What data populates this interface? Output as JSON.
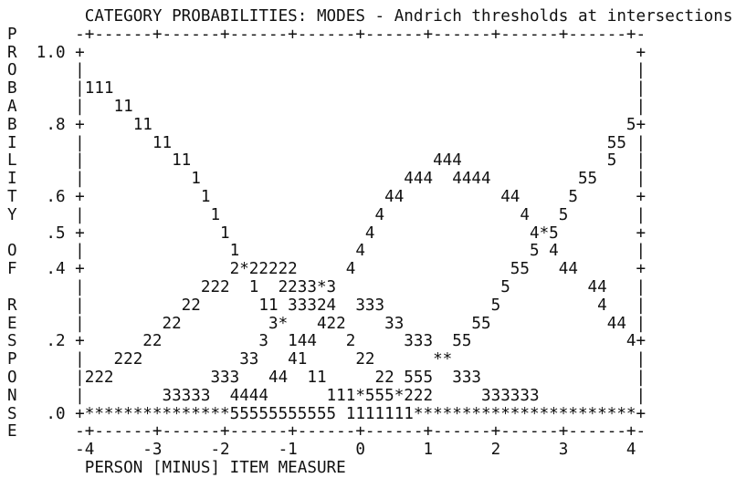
{
  "lines": [
    "        CATEGORY PROBABILITIES: MODES - Andrich thresholds at intersections",
    "P      -+------+------+------+------+------+------+------+------+-",
    "R  1.0 +                                                         +",
    "O      |                                                         |",
    "B      |111                                                      |",
    "A      |   11                                                    |",
    "B   .8 +     11                                                 5+",
    "I      |       11                                             55 |",
    "L      |         11                         444               5  |",
    "I      |           1                     444  4444         55    |",
    "T   .6 +            1                  44          44     5      +",
    "Y      |             1                4              4   5       |",
    "    .5 +              1              4                4*5        +",
    "O      |               1            4                 5 4        |",
    "F   .4 +               2*22222     4                55   44      +",
    "       |            222  1  2233*3                 5        44   |",
    "R      |          22      11 33324  333           5          4   |",
    "E      |        22         3*   422    33       55            44 |",
    "S   .2 +      22          3  144   2     333  55                4+",
    "P      |   222          33   41     22      **                   |",
    "O      |222          333   44  11     22 555  333                |",
    "N      |        33333  4444      111*555*222     333333          |",
    "S   .0 +***************55555555555 1111111***********************+",
    "E      -+------+------+------+------+------+------+------+------+-",
    "       -4     -3     -2     -1      0      1      2      3      4",
    "        PERSON [MINUS] ITEM MEASURE"
  ]
}
